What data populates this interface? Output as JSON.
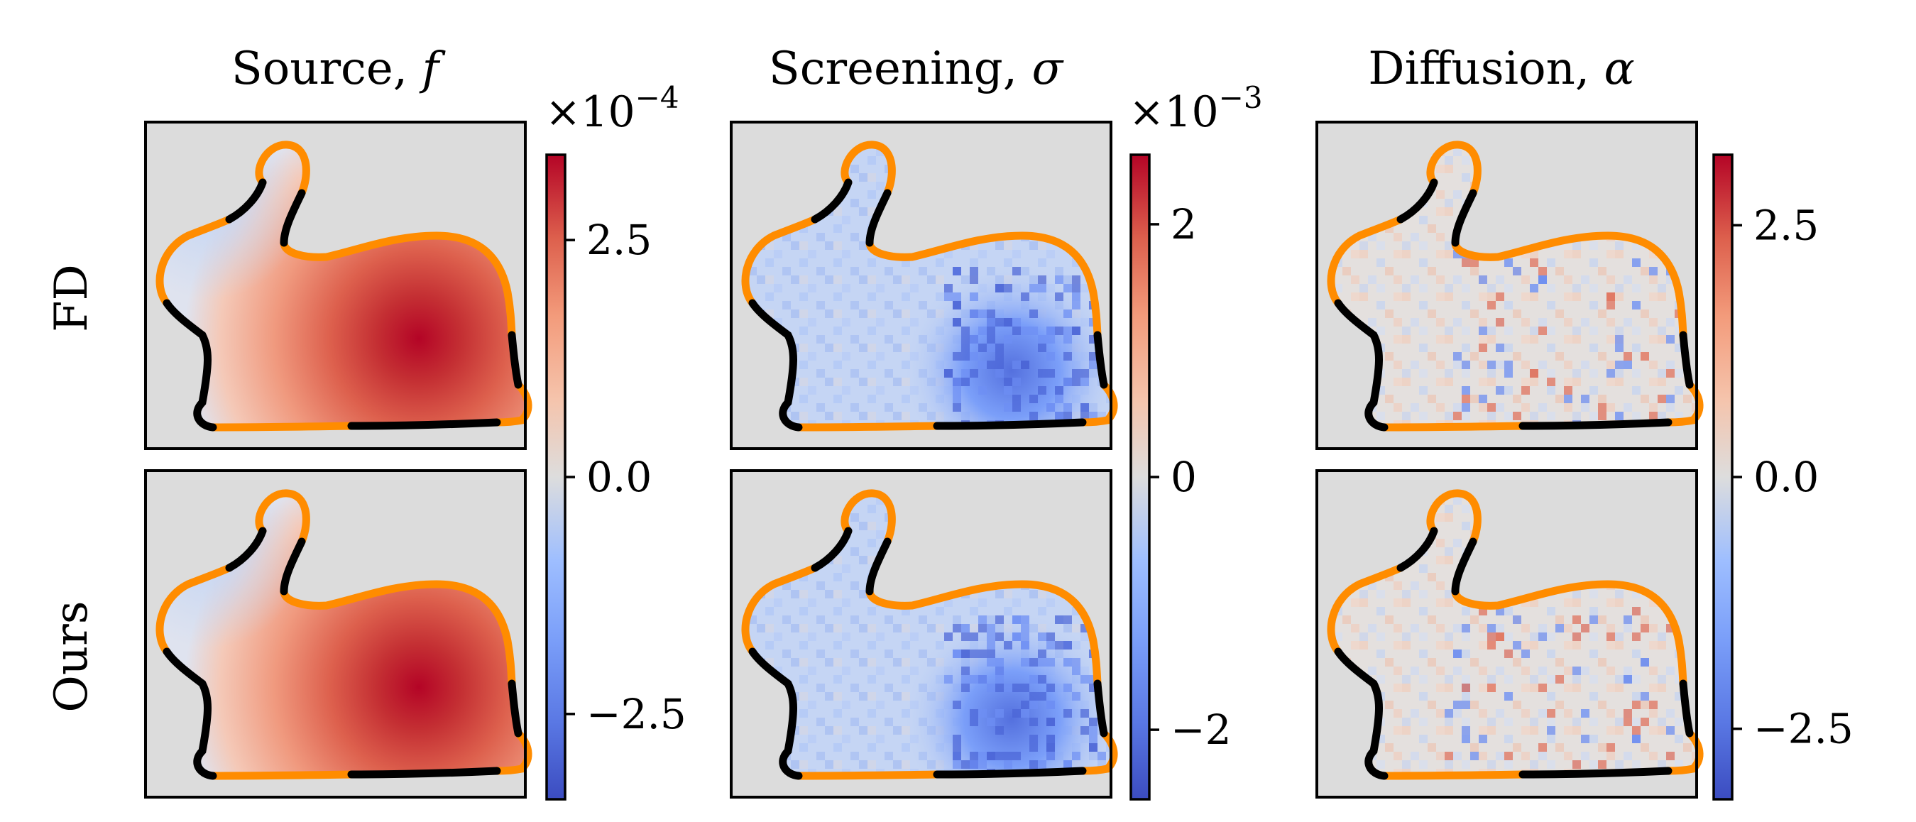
{
  "figure": {
    "rows": [
      {
        "label": "FD"
      },
      {
        "label": "Ours"
      }
    ],
    "columns": [
      {
        "title": "Source, f",
        "title_plain": "Source, ",
        "title_symbol": "f",
        "multiplier_base": "×10",
        "multiplier_exp": "−4",
        "colorbar_ticks": [
          "2.5",
          "0.0",
          "−2.5"
        ],
        "colorbar_values": [
          2.5,
          0.0,
          -2.5
        ],
        "colorbar_range": [
          -3.4,
          3.4
        ],
        "pattern": "source"
      },
      {
        "title": "Screening, σ",
        "title_plain": "Screening, ",
        "title_symbol": "σ",
        "multiplier_base": "×10",
        "multiplier_exp": "−3",
        "colorbar_ticks": [
          "2",
          "0",
          "−2"
        ],
        "colorbar_values": [
          2,
          0,
          -2
        ],
        "colorbar_range": [
          -2.55,
          2.55
        ],
        "pattern": "screening"
      },
      {
        "title": "Diffusion, α",
        "title_plain": "Diffusion, ",
        "title_symbol": "α",
        "multiplier_base": "",
        "multiplier_exp": "",
        "colorbar_ticks": [
          "2.5",
          "0.0",
          "−2.5"
        ],
        "colorbar_values": [
          2.5,
          0.0,
          -2.5
        ],
        "colorbar_range": [
          -3.2,
          3.2
        ],
        "pattern": "diffusion"
      }
    ],
    "colors": {
      "background_gray": "#dcdcdc",
      "boundary_dirichlet": "#ff8c00",
      "boundary_neumann": "#000000",
      "cmap_low": "#3b4cc0",
      "cmap_mid": "#dddddd",
      "cmap_high": "#b40426"
    },
    "colormap": "coolwarm"
  }
}
